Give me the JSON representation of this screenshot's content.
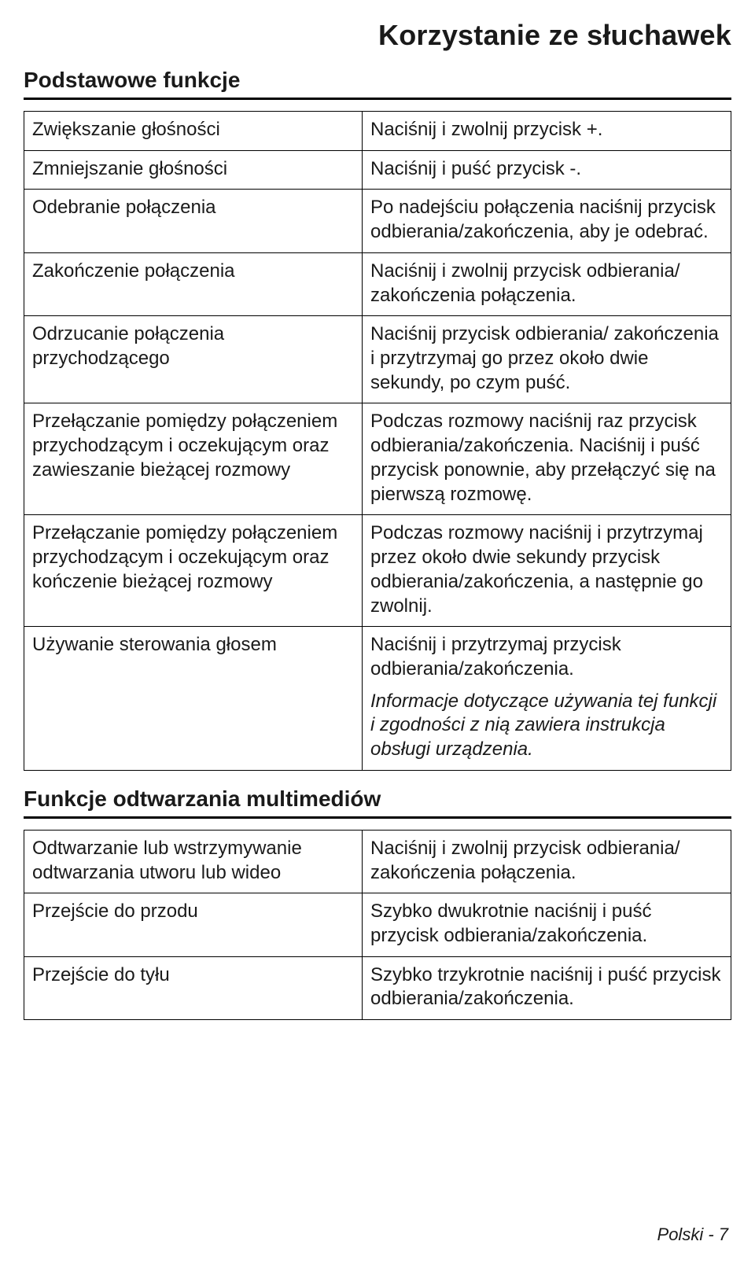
{
  "title": "Korzystanie ze słuchawek",
  "section1_heading": "Podstawowe funkcje",
  "section2_heading": "Funkcje odtwarzania multimediów",
  "basic": [
    {
      "left": "Zwiększanie głośności",
      "right": [
        "Naciśnij i zwolnij przycisk +."
      ]
    },
    {
      "left": "Zmniejszanie głośności",
      "right": [
        "Naciśnij i puść przycisk -."
      ]
    },
    {
      "left": "Odebranie połączenia",
      "right": [
        "Po nadejściu połączenia naciśnij przycisk odbierania/zakończenia, aby je odebrać."
      ]
    },
    {
      "left": "Zakończenie połączenia",
      "right": [
        "Naciśnij i zwolnij przycisk odbierania/ zakończenia połączenia."
      ]
    },
    {
      "left": "Odrzucanie połączenia przychodzącego",
      "right": [
        "Naciśnij przycisk odbierania/ zakończenia i przytrzymaj go przez około dwie sekundy, po czym puść."
      ]
    },
    {
      "left": "Przełączanie pomiędzy połączeniem przychodzącym i oczekującym oraz zawieszanie bieżącej rozmowy",
      "right": [
        "Podczas rozmowy naciśnij raz przycisk odbierania/zakończenia. Naciśnij i puść przycisk ponownie, aby przełączyć się na pierwszą rozmowę."
      ]
    },
    {
      "left": "Przełączanie pomiędzy połączeniem przychodzącym i oczekującym oraz kończenie bieżącej rozmowy",
      "right": [
        "Podczas rozmowy naciśnij i przytrzymaj przez około dwie sekundy przycisk odbierania/zakończenia, a następnie go zwolnij."
      ]
    },
    {
      "left": "Używanie sterowania głosem",
      "right": [
        "Naciśnij i przytrzymaj przycisk odbierania/zakończenia.",
        "Informacje dotyczące używania tej funkcji i zgodności z nią zawiera instrukcja obsługi urządzenia."
      ],
      "italic_index": 1
    }
  ],
  "media": [
    {
      "left": "Odtwarzanie lub wstrzymywanie odtwarzania utworu lub wideo",
      "right": [
        "Naciśnij i zwolnij przycisk odbierania/ zakończenia połączenia."
      ]
    },
    {
      "left": "Przejście do przodu",
      "right": [
        "Szybko dwukrotnie naciśnij i puść przycisk odbierania/zakończenia."
      ]
    },
    {
      "left": "Przejście do tyłu",
      "right": [
        "Szybko trzykrotnie naciśnij i puść przycisk odbierania/zakończenia."
      ]
    }
  ],
  "footer": "Polski - 7",
  "colors": {
    "text": "#1a1a1a",
    "background": "#ffffff",
    "border": "#000000"
  },
  "typography": {
    "title_fontsize": 36,
    "section_heading_fontsize": 28,
    "body_fontsize": 24,
    "footer_fontsize": 22
  }
}
